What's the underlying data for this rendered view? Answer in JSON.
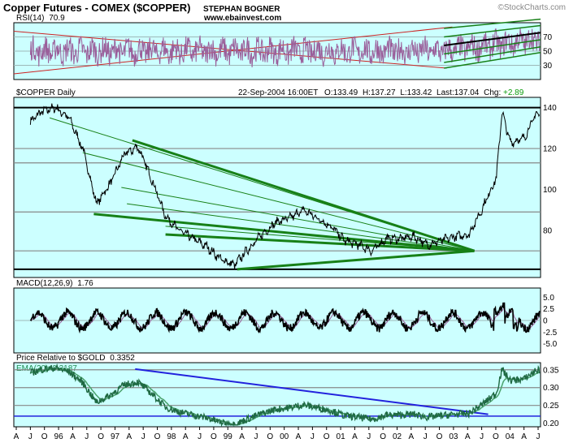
{
  "header": {
    "title": "Copper Futures - COMEX ($COPPER)",
    "author": "STEPHAN BOGNER",
    "url": "www.ebainvest.com",
    "watermark": "©StockCharts.com"
  },
  "chart_data": [
    {
      "type": "line",
      "panel": "rsi",
      "label": "RSI(14)",
      "last_value": "70.9",
      "ylim": [
        10,
        90
      ],
      "yticks": [
        "70",
        "50",
        "30"
      ],
      "grid": true,
      "line_color": "#9a5e9a"
    },
    {
      "type": "line",
      "panel": "price",
      "symbol": "$COPPER Daily",
      "date": "22-Sep-2004 16:00ET",
      "ohlc_text": {
        "open": "O:133.49",
        "high": "H:137.27",
        "low": "L:133.42",
        "last": "Last:137.04",
        "chg_label": "Chg:",
        "chg": "+2.89"
      },
      "ylim": [
        57,
        145
      ],
      "yticks": [
        "140",
        "120",
        "100",
        "80"
      ],
      "x": [
        "1995.50",
        "1995.75",
        "1996.00",
        "1996.25",
        "1996.50",
        "1996.75",
        "1997.00",
        "1997.25",
        "1997.50",
        "1997.75",
        "1998.00",
        "1998.25",
        "1998.50",
        "1998.75",
        "1999.00",
        "1999.25",
        "1999.50",
        "1999.75",
        "2000.00",
        "2000.25",
        "2000.50",
        "2000.75",
        "2001.00",
        "2001.25",
        "2001.50",
        "2001.75",
        "2002.00",
        "2002.25",
        "2002.50",
        "2002.75",
        "2003.00",
        "2003.25",
        "2003.50",
        "2003.75",
        "2004.00",
        "2004.10",
        "2004.25",
        "2004.50",
        "2004.72"
      ],
      "values": [
        132,
        138,
        140,
        135,
        120,
        93,
        103,
        117,
        121,
        105,
        87,
        80,
        76,
        72,
        66,
        63,
        71,
        78,
        84,
        86,
        90,
        86,
        82,
        75,
        73,
        70,
        76,
        76,
        77,
        73,
        75,
        77,
        78,
        91,
        106,
        138,
        123,
        125,
        137
      ],
      "horizontal_lines": [
        140,
        120,
        113,
        89,
        70,
        61
      ]
    },
    {
      "type": "line",
      "panel": "macd",
      "label": "MACD(12,26,9)",
      "last_value": "1.76",
      "ylim": [
        -7,
        7
      ],
      "yticks": [
        "5.0",
        "2.5",
        "0",
        "-2.5",
        "-5.0"
      ]
    },
    {
      "type": "line",
      "panel": "relative",
      "label": "Price Relative to $GOLD",
      "last_value": "0.3352",
      "ema_label": "EMA(20)",
      "ema_value": "0.3187",
      "ylim": [
        0.19,
        0.37
      ],
      "yticks": [
        "0.35",
        "0.30",
        "0.25",
        "0.20"
      ],
      "horizontal_lines": [
        0.35,
        0.3,
        0.25,
        0.22
      ]
    }
  ],
  "x_axis": {
    "ticks": [
      "A",
      "J",
      "O",
      "96",
      "A",
      "J",
      "O",
      "97",
      "A",
      "J",
      "O",
      "98",
      "A",
      "J",
      "O",
      "99",
      "A",
      "J",
      "O",
      "00",
      "A",
      "J",
      "O",
      "01",
      "A",
      "J",
      "O",
      "02",
      "A",
      "J",
      "O",
      "03",
      "A",
      "J",
      "O",
      "04",
      "A",
      "J"
    ]
  },
  "colors": {
    "panel_bg": "#ccffff",
    "grid": "#9eb8b8",
    "price_line": "#000000",
    "trend_green": "#178017",
    "trend_red": "#cc2222",
    "trend_blue": "#2222dd",
    "rsi_line": "#9a5e9a",
    "relative_line": "#1f6a43",
    "ema_line": "#4aa26c",
    "chg_positive": "#0a9a0a"
  }
}
